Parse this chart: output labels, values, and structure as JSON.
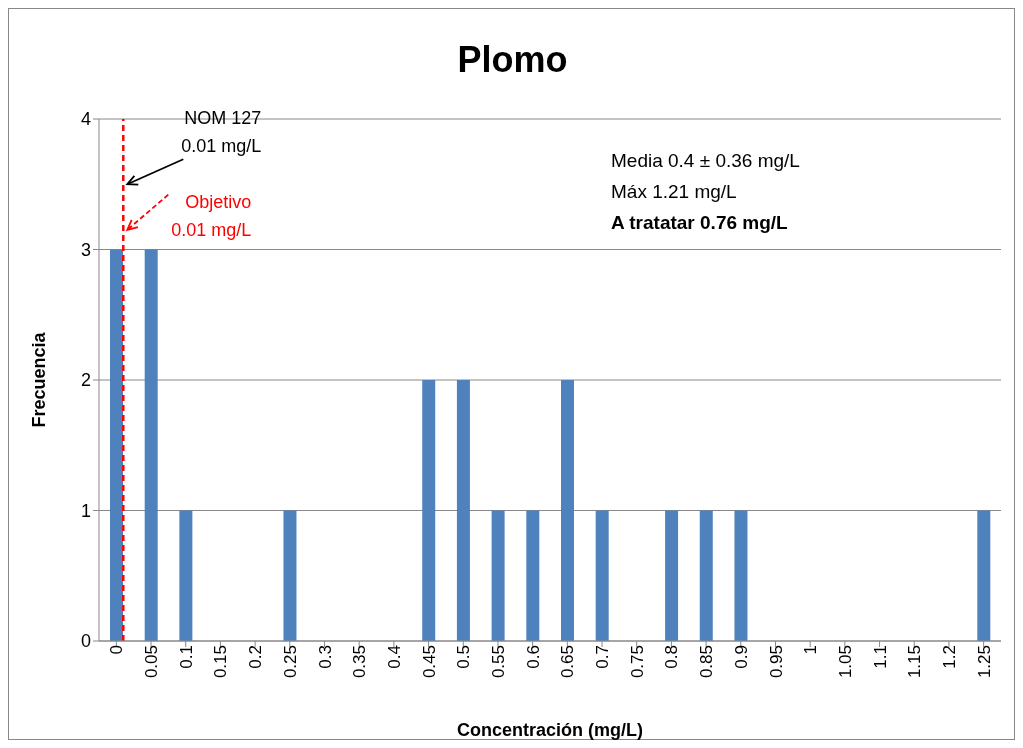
{
  "chart_data": {
    "type": "bar",
    "title": "Plomo",
    "xlabel": "Concentración (mg/L)",
    "ylabel": "Frecuencia",
    "x": [
      0,
      0.05,
      0.1,
      0.15,
      0.2,
      0.25,
      0.3,
      0.35,
      0.4,
      0.45,
      0.5,
      0.55,
      0.6,
      0.65,
      0.7,
      0.75,
      0.8,
      0.85,
      0.9,
      0.95,
      1,
      1.05,
      1.1,
      1.15,
      1.2,
      1.25
    ],
    "values": [
      3,
      3,
      1,
      0,
      0,
      1,
      0,
      0,
      0,
      2,
      2,
      1,
      1,
      2,
      1,
      0,
      1,
      1,
      1,
      0,
      0,
      0,
      0,
      0,
      0,
      1
    ],
    "color": "#4f81bd",
    "xlim": [
      -0.025,
      1.275
    ],
    "xticks": [
      0,
      0.05,
      0.1,
      0.15,
      0.2,
      0.25,
      0.3,
      0.35,
      0.4,
      0.45,
      0.5,
      0.55,
      0.6,
      0.65,
      0.7,
      0.75,
      0.8,
      0.85,
      0.9,
      0.95,
      1,
      1.05,
      1.1,
      1.15,
      1.2,
      1.25
    ],
    "ylim": [
      0,
      4
    ],
    "yticks": [
      0,
      1,
      2,
      3,
      4
    ],
    "grid": "y",
    "legend": false,
    "ref_lines": [
      {
        "axis": "x",
        "value": 0.01,
        "label": "Objetivo\n0.01 mg/L",
        "color": "#ff0000",
        "line_style": "dashed"
      }
    ],
    "annotations": [
      {
        "text": "NOM 127\n0.01 mg/L",
        "x": 0.01,
        "y": 3.5
      },
      "Media 0.4 ± 0.36 mg/L",
      "Máx 1.21 mg/L",
      "A tratatar 0.76 mg/L"
    ]
  }
}
